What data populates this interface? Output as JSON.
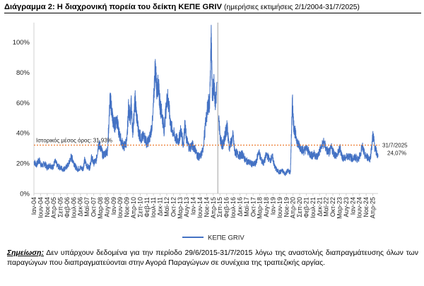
{
  "header": {
    "title": "Διάγραμμα 2: Η διαχρονική πορεία του δείκτη ΚΕΠΕ GRIV",
    "subtitle": "(ημερήσιες εκτιμήσεις 2/1/2004-31/7/2025)"
  },
  "note": {
    "label": "Σημείωση:",
    "text": "Δεν υπάρχουν δεδομένα για την περίοδο 29/6/2015-31/7/2015 λόγω της αναστολής διαπραγμάτευσης όλων των παραγώγων που διαπραγματεύονται στην Αγορά Παραγώγων σε συνέχεια της τραπεζικής αργίας."
  },
  "colors": {
    "series": "#4472C4",
    "mean_line": "#ED7D31",
    "gap_marker": "#b0b0b0"
  },
  "chart_data": {
    "type": "line",
    "ylim": [
      0,
      110
    ],
    "yticks": [
      0,
      20,
      40,
      60,
      80,
      100
    ],
    "ytick_labels": [
      "0%",
      "20%",
      "40%",
      "60%",
      "80%",
      "100%"
    ],
    "y_grid": false,
    "x_range": [
      "2004-01-02",
      "2025-07-31"
    ],
    "xtick_labels": [
      "Ιαν-04",
      "Ιουν-04",
      "Νοε-04",
      "Απρ-05",
      "Σεπ-05",
      "Φεβ-06",
      "Ιουλ-06",
      "Δεκ-06",
      "Μαϊ-07",
      "Οκτ-07",
      "Μαρ-08",
      "Αυγ-08",
      "Ιαν-09",
      "Ιουν-09",
      "Νοε-09",
      "Απρ-10",
      "Σεπ-10",
      "Φεβ-11",
      "Ιουλ-11",
      "Δεκ-11",
      "Μαϊ-12",
      "Οκτ-12",
      "Μαρ-13",
      "Αυγ-13",
      "Ιαν-14",
      "Ιουν-14",
      "Νοε-14",
      "Απρ-15",
      "Σεπ-15",
      "Φεβ-16",
      "Ιουλ-16",
      "Δεκ-16",
      "Μαϊ-17",
      "Οκτ-17",
      "Μαρ-18",
      "Αυγ-18",
      "Ιαν-19",
      "Ιουν-19",
      "Νοε-19",
      "Απρ-20",
      "Σεπ-20",
      "Φεβ-21",
      "Ιουλ-21",
      "Δεκ-21",
      "Μαϊ-22",
      "Οκτ-22",
      "Μαρ-23",
      "Αυγ-23",
      "Ιαν-24",
      "Ιουν-24",
      "Νοε-24",
      "Απρ-25"
    ],
    "xticks": [
      "2004-01-01",
      "2004-06-01",
      "2004-11-01",
      "2005-04-01",
      "2005-09-01",
      "2006-02-01",
      "2006-07-01",
      "2006-12-01",
      "2007-05-01",
      "2007-10-01",
      "2008-03-01",
      "2008-08-01",
      "2009-01-01",
      "2009-06-01",
      "2009-11-01",
      "2010-04-01",
      "2010-09-01",
      "2011-02-01",
      "2011-07-01",
      "2011-12-01",
      "2012-05-01",
      "2012-10-01",
      "2013-03-01",
      "2013-08-01",
      "2014-01-01",
      "2014-06-01",
      "2014-11-01",
      "2015-04-01",
      "2015-09-01",
      "2016-02-01",
      "2016-07-01",
      "2016-12-01",
      "2017-05-01",
      "2017-10-01",
      "2018-03-01",
      "2018-08-01",
      "2019-01-01",
      "2019-06-01",
      "2019-11-01",
      "2020-04-01",
      "2020-09-01",
      "2021-02-01",
      "2021-07-01",
      "2021-12-01",
      "2022-05-01",
      "2022-10-01",
      "2023-03-01",
      "2023-08-01",
      "2024-01-01",
      "2024-06-01",
      "2024-11-01",
      "2025-04-01"
    ],
    "series": [
      {
        "name": "ΚΕΠΕ GRIV",
        "points": [
          [
            "2004-01-02",
            21
          ],
          [
            "2004-03-01",
            19
          ],
          [
            "2004-05-01",
            22
          ],
          [
            "2004-07-01",
            18
          ],
          [
            "2004-09-01",
            20
          ],
          [
            "2004-11-01",
            17
          ],
          [
            "2005-01-01",
            19
          ],
          [
            "2005-03-01",
            17
          ],
          [
            "2005-05-01",
            21
          ],
          [
            "2005-07-01",
            18
          ],
          [
            "2005-09-01",
            17
          ],
          [
            "2005-11-01",
            16
          ],
          [
            "2006-01-01",
            17
          ],
          [
            "2006-03-01",
            19
          ],
          [
            "2006-05-01",
            24
          ],
          [
            "2006-06-15",
            22
          ],
          [
            "2006-08-01",
            18
          ],
          [
            "2006-10-01",
            16
          ],
          [
            "2006-12-01",
            17
          ],
          [
            "2007-02-01",
            16
          ],
          [
            "2007-03-05",
            22
          ],
          [
            "2007-05-01",
            18
          ],
          [
            "2007-07-01",
            17
          ],
          [
            "2007-08-15",
            24
          ],
          [
            "2007-10-01",
            20
          ],
          [
            "2007-12-01",
            22
          ],
          [
            "2008-01-22",
            33
          ],
          [
            "2008-03-17",
            30
          ],
          [
            "2008-05-01",
            25
          ],
          [
            "2008-07-01",
            27
          ],
          [
            "2008-08-15",
            28
          ],
          [
            "2008-10-10",
            63
          ],
          [
            "2008-11-20",
            55
          ],
          [
            "2008-12-20",
            47
          ],
          [
            "2009-02-01",
            45
          ],
          [
            "2009-03-10",
            50
          ],
          [
            "2009-05-01",
            40
          ],
          [
            "2009-07-01",
            34
          ],
          [
            "2009-09-01",
            31
          ],
          [
            "2009-11-01",
            35
          ],
          [
            "2009-12-10",
            58
          ],
          [
            "2010-01-15",
            48
          ],
          [
            "2010-02-05",
            60
          ],
          [
            "2010-03-15",
            40
          ],
          [
            "2010-05-07",
            62
          ],
          [
            "2010-06-15",
            50
          ],
          [
            "2010-08-01",
            40
          ],
          [
            "2010-10-01",
            36
          ],
          [
            "2010-12-01",
            38
          ],
          [
            "2011-02-01",
            33
          ],
          [
            "2011-04-01",
            36
          ],
          [
            "2011-06-15",
            48
          ],
          [
            "2011-08-10",
            84
          ],
          [
            "2011-09-20",
            68
          ],
          [
            "2011-10-20",
            72
          ],
          [
            "2011-12-01",
            58
          ],
          [
            "2012-01-15",
            52
          ],
          [
            "2012-03-01",
            42
          ],
          [
            "2012-05-15",
            65
          ],
          [
            "2012-06-15",
            58
          ],
          [
            "2012-08-01",
            45
          ],
          [
            "2012-10-01",
            40
          ],
          [
            "2012-12-01",
            36
          ],
          [
            "2013-02-01",
            35
          ],
          [
            "2013-03-20",
            42
          ],
          [
            "2013-05-15",
            32
          ],
          [
            "2013-06-20",
            45
          ],
          [
            "2013-08-01",
            35
          ],
          [
            "2013-10-01",
            30
          ],
          [
            "2013-12-01",
            32
          ],
          [
            "2014-02-01",
            30
          ],
          [
            "2014-04-01",
            25
          ],
          [
            "2014-06-01",
            24
          ],
          [
            "2014-08-01",
            28
          ],
          [
            "2014-10-16",
            48
          ],
          [
            "2014-12-10",
            60
          ],
          [
            "2015-01-05",
            58
          ],
          [
            "2015-02-15",
            103
          ],
          [
            "2015-03-10",
            65
          ],
          [
            "2015-04-20",
            72
          ],
          [
            "2015-05-20",
            60
          ],
          [
            "2015-06-26",
            70
          ],
          [
            "2015-08-03",
            50
          ],
          [
            "2015-09-15",
            35
          ],
          [
            "2015-11-01",
            32
          ],
          [
            "2015-12-15",
            36
          ],
          [
            "2016-01-20",
            42
          ],
          [
            "2016-02-15",
            44
          ],
          [
            "2016-04-01",
            30
          ],
          [
            "2016-06-27",
            38
          ],
          [
            "2016-08-01",
            28
          ],
          [
            "2016-10-01",
            26
          ],
          [
            "2016-12-01",
            25
          ],
          [
            "2017-02-01",
            26
          ],
          [
            "2017-04-01",
            22
          ],
          [
            "2017-06-01",
            21
          ],
          [
            "2017-08-01",
            20
          ],
          [
            "2017-10-01",
            19
          ],
          [
            "2017-12-01",
            20
          ],
          [
            "2018-02-06",
            28
          ],
          [
            "2018-04-01",
            22
          ],
          [
            "2018-06-01",
            20
          ],
          [
            "2018-08-01",
            26
          ],
          [
            "2018-10-15",
            22
          ],
          [
            "2018-12-20",
            24
          ],
          [
            "2019-02-01",
            18
          ],
          [
            "2019-04-01",
            15
          ],
          [
            "2019-06-01",
            14
          ],
          [
            "2019-08-01",
            15
          ],
          [
            "2019-10-01",
            13
          ],
          [
            "2019-12-01",
            15
          ],
          [
            "2020-02-01",
            14
          ],
          [
            "2020-03-16",
            61
          ],
          [
            "2020-04-15",
            45
          ],
          [
            "2020-06-01",
            38
          ],
          [
            "2020-08-01",
            32
          ],
          [
            "2020-10-01",
            30
          ],
          [
            "2020-12-01",
            28
          ],
          [
            "2021-02-01",
            30
          ],
          [
            "2021-04-01",
            27
          ],
          [
            "2021-06-01",
            25
          ],
          [
            "2021-08-01",
            26
          ],
          [
            "2021-10-01",
            24
          ],
          [
            "2021-12-01",
            28
          ],
          [
            "2022-03-07",
            34
          ],
          [
            "2022-05-01",
            29
          ],
          [
            "2022-07-01",
            27
          ],
          [
            "2022-09-01",
            30
          ],
          [
            "2022-11-01",
            26
          ],
          [
            "2023-01-01",
            25
          ],
          [
            "2023-03-15",
            30
          ],
          [
            "2023-05-01",
            24
          ],
          [
            "2023-07-01",
            23
          ],
          [
            "2023-09-01",
            25
          ],
          [
            "2023-11-01",
            24
          ],
          [
            "2024-01-01",
            23
          ],
          [
            "2024-03-01",
            24
          ],
          [
            "2024-05-01",
            22
          ],
          [
            "2024-08-05",
            31
          ],
          [
            "2024-10-01",
            25
          ],
          [
            "2024-12-01",
            24
          ],
          [
            "2025-02-01",
            23
          ],
          [
            "2025-04-07",
            39
          ],
          [
            "2025-05-20",
            30
          ],
          [
            "2025-07-31",
            24.07
          ]
        ]
      }
    ],
    "gap": {
      "from": "2015-06-29",
      "to": "2015-07-31"
    },
    "mean": {
      "value": 31.93,
      "label": "Ιστορικός μέσος όρος: 31,93%"
    },
    "end_annotation": {
      "date": "31/7/2025",
      "value_label": "24,07%"
    },
    "legend": {
      "position": "bottom-center"
    }
  }
}
